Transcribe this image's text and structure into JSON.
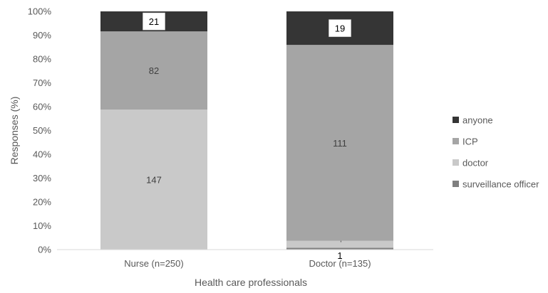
{
  "chart_data": {
    "type": "bar",
    "stacked": true,
    "normalized": true,
    "categories": [
      "Nurse (n=250)",
      "Doctor (n=135)"
    ],
    "series": [
      {
        "name": "surveillance officer",
        "values": [
          0,
          1
        ],
        "color": "#7f7f7f"
      },
      {
        "name": "doctor",
        "values": [
          147,
          4
        ],
        "color": "#c9c9c9"
      },
      {
        "name": "ICP",
        "values": [
          82,
          111
        ],
        "color": "#a5a5a5"
      },
      {
        "name": "anyone",
        "values": [
          21,
          19
        ],
        "color": "#353535"
      }
    ],
    "data_labels": {
      "show": true,
      "boxed_series": [
        "anyone"
      ]
    },
    "xlabel": "Health care professionals",
    "ylabel": "Responses (%)",
    "ylim": [
      0,
      100
    ],
    "y_ticks": [
      "0%",
      "10%",
      "20%",
      "30%",
      "40%",
      "50%",
      "60%",
      "70%",
      "80%",
      "90%",
      "100%"
    ],
    "grid": false,
    "legend": {
      "placement": "right",
      "order": [
        "anyone",
        "ICP",
        "doctor",
        "surveillance officer"
      ]
    }
  }
}
